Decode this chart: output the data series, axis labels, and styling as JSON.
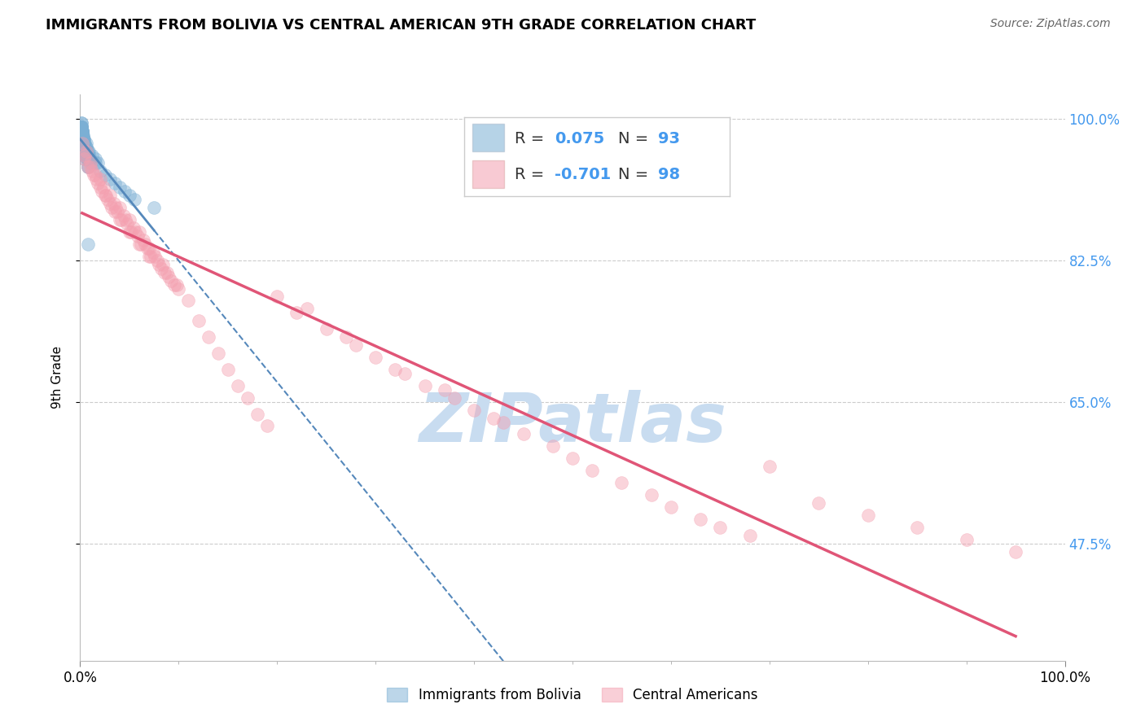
{
  "title": "IMMIGRANTS FROM BOLIVIA VS CENTRAL AMERICAN 9TH GRADE CORRELATION CHART",
  "source": "Source: ZipAtlas.com",
  "ylabel": "9th Grade",
  "legend_label_1": "Immigrants from Bolivia",
  "legend_label_2": "Central Americans",
  "R1": 0.075,
  "N1": 93,
  "R2": -0.701,
  "N2": 98,
  "color_bolivia": "#7BAFD4",
  "color_central": "#F4A0B0",
  "color_trend_bolivia": "#5588BB",
  "color_trend_central": "#E05577",
  "xlim": [
    0,
    100
  ],
  "ylim": [
    33,
    103
  ],
  "yticks": [
    100.0,
    82.5,
    65.0,
    47.5
  ],
  "ytick_labels": [
    "100.0%",
    "82.5%",
    "65.0%",
    "47.5%"
  ],
  "bolivia_x": [
    0.1,
    0.15,
    0.2,
    0.25,
    0.3,
    0.35,
    0.4,
    0.45,
    0.5,
    0.6,
    0.7,
    0.8,
    0.9,
    1.0,
    0.1,
    0.15,
    0.2,
    0.25,
    0.3,
    0.35,
    0.4,
    0.5,
    0.6,
    0.7,
    0.8,
    0.9,
    0.1,
    0.15,
    0.2,
    0.25,
    0.3,
    0.4,
    0.5,
    0.6,
    0.7,
    0.1,
    0.15,
    0.2,
    0.25,
    0.3,
    0.4,
    0.5,
    0.6,
    0.1,
    0.15,
    0.2,
    0.3,
    0.4,
    0.5,
    0.6,
    0.7,
    0.8,
    0.1,
    0.2,
    0.3,
    0.4,
    0.5,
    0.6,
    0.8,
    1.2,
    1.5,
    1.8,
    0.1,
    0.2,
    0.3,
    0.5,
    0.8,
    1.0,
    1.5,
    2.0,
    2.5,
    3.0,
    3.5,
    4.0,
    5.0,
    0.1,
    0.2,
    0.3,
    4.5,
    5.5,
    0.15,
    0.25,
    0.35,
    0.12,
    0.18,
    7.5,
    0.22,
    0.28,
    0.32,
    0.42,
    0.52,
    0.62,
    0.72,
    0.82,
    0.92
  ],
  "bolivia_y": [
    97.5,
    98.0,
    97.0,
    98.5,
    96.5,
    97.5,
    95.0,
    96.0,
    96.5,
    97.0,
    95.5,
    94.0,
    96.0,
    94.5,
    99.0,
    98.5,
    98.0,
    97.5,
    96.5,
    97.0,
    95.5,
    96.0,
    96.5,
    95.0,
    94.0,
    95.5,
    99.0,
    98.5,
    98.0,
    97.5,
    97.0,
    96.5,
    96.0,
    95.5,
    95.0,
    99.5,
    99.0,
    98.5,
    98.0,
    97.5,
    97.0,
    96.5,
    96.0,
    99.0,
    98.5,
    98.0,
    97.5,
    97.0,
    96.5,
    96.0,
    95.5,
    95.0,
    99.0,
    98.5,
    98.0,
    97.5,
    97.0,
    96.5,
    96.0,
    95.5,
    95.0,
    94.5,
    99.0,
    98.5,
    97.5,
    96.5,
    95.5,
    95.0,
    94.5,
    93.5,
    93.0,
    92.5,
    92.0,
    91.5,
    90.5,
    98.0,
    97.0,
    96.0,
    91.0,
    90.0,
    99.0,
    98.0,
    97.0,
    99.5,
    98.5,
    89.0,
    98.2,
    97.8,
    97.3,
    96.8,
    96.3,
    95.8,
    95.3,
    84.5,
    94.8
  ],
  "central_x": [
    0.2,
    0.5,
    1.0,
    1.5,
    2.0,
    2.5,
    3.0,
    3.5,
    4.0,
    5.0,
    6.0,
    7.0,
    8.0,
    9.0,
    10.0,
    1.2,
    2.2,
    3.2,
    4.2,
    5.2,
    6.2,
    7.2,
    8.2,
    9.2,
    11.0,
    12.0,
    13.0,
    1.8,
    2.8,
    3.8,
    4.8,
    5.8,
    6.8,
    7.8,
    8.8,
    9.8,
    14.0,
    15.0,
    0.8,
    1.6,
    2.6,
    3.6,
    4.6,
    5.6,
    6.6,
    7.6,
    8.6,
    9.6,
    16.0,
    17.0,
    0.4,
    1.4,
    2.4,
    3.4,
    4.4,
    5.4,
    6.4,
    7.4,
    8.4,
    18.0,
    19.0,
    0.6,
    1.0,
    2.0,
    3.0,
    4.0,
    5.0,
    6.0,
    7.0,
    20.0,
    22.0,
    25.0,
    28.0,
    30.0,
    33.0,
    35.0,
    38.0,
    40.0,
    43.0,
    45.0,
    48.0,
    50.0,
    55.0,
    58.0,
    60.0,
    63.0,
    65.0,
    70.0,
    75.0,
    80.0,
    85.0,
    90.0,
    95.0,
    32.0,
    27.0,
    23.0,
    52.0,
    42.0,
    37.0,
    68.0
  ],
  "central_y": [
    97.0,
    95.5,
    94.0,
    93.0,
    91.5,
    90.5,
    89.5,
    88.5,
    87.5,
    86.0,
    84.5,
    83.0,
    82.0,
    80.5,
    79.0,
    93.5,
    91.0,
    89.0,
    87.5,
    86.0,
    84.5,
    83.0,
    81.5,
    80.0,
    77.5,
    75.0,
    73.0,
    92.0,
    90.0,
    88.5,
    87.0,
    85.5,
    84.0,
    82.5,
    81.0,
    79.5,
    71.0,
    69.0,
    94.0,
    92.5,
    90.5,
    89.0,
    87.5,
    86.0,
    84.5,
    83.0,
    81.0,
    79.5,
    67.0,
    65.5,
    95.0,
    93.0,
    91.5,
    89.5,
    88.0,
    86.5,
    85.0,
    83.5,
    82.0,
    63.5,
    62.0,
    96.0,
    94.5,
    92.5,
    90.5,
    89.0,
    87.5,
    86.0,
    84.0,
    78.0,
    76.0,
    74.0,
    72.0,
    70.5,
    68.5,
    67.0,
    65.5,
    64.0,
    62.5,
    61.0,
    59.5,
    58.0,
    55.0,
    53.5,
    52.0,
    50.5,
    49.5,
    57.0,
    52.5,
    51.0,
    49.5,
    48.0,
    46.5,
    69.0,
    73.0,
    76.5,
    56.5,
    63.0,
    66.5,
    48.5
  ],
  "watermark_text": "ZIPatlas",
  "watermark_color": "#C8DCF0",
  "background_color": "#ffffff"
}
